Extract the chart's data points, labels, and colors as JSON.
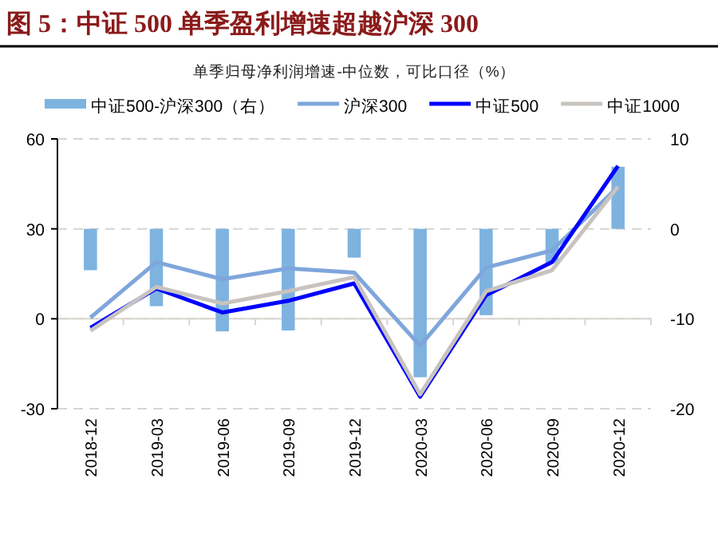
{
  "chart_data": {
    "type": "bar",
    "title": "图 5：中证 500 单季盈利增速超越沪深 300",
    "subtitle": "单季归母净利润增速-中位数，可比口径（%）",
    "categories": [
      "2018-12",
      "2019-03",
      "2019-06",
      "2019-09",
      "2019-12",
      "2020-03",
      "2020-06",
      "2020-09",
      "2020-12"
    ],
    "series": [
      {
        "name": "中证500-沪深300（右）",
        "axis": "y2",
        "color": "#7eb3e0",
        "values": [
          -4.6,
          -8.6,
          -11.4,
          -11.3,
          -3.2,
          -16.5,
          -9.6,
          -3.8,
          6.9
        ]
      },
      {
        "name": "沪深300",
        "type": "line",
        "color": "#7ea6dc",
        "values": [
          0.4,
          18.9,
          13.2,
          16.8,
          15.4,
          -9,
          17.1,
          22.8,
          44
        ]
      },
      {
        "name": "中证500",
        "type": "line",
        "color": "#0000ff",
        "values": [
          -3,
          10.1,
          2.1,
          6,
          11.8,
          -26,
          7.9,
          18.9,
          51
        ]
      },
      {
        "name": "中证1000",
        "type": "line",
        "color": "#c8c3bf",
        "values": [
          -4,
          10.6,
          5.1,
          9.2,
          13.9,
          -25.2,
          9.2,
          16.2,
          44.1
        ]
      }
    ],
    "ylim": [
      -30,
      60
    ],
    "yticks": [
      -30,
      0,
      30,
      60
    ],
    "y2lim": [
      -20,
      10
    ],
    "y2ticks": [
      -20,
      -10,
      0,
      10
    ],
    "grid": "y",
    "legend": "top"
  }
}
